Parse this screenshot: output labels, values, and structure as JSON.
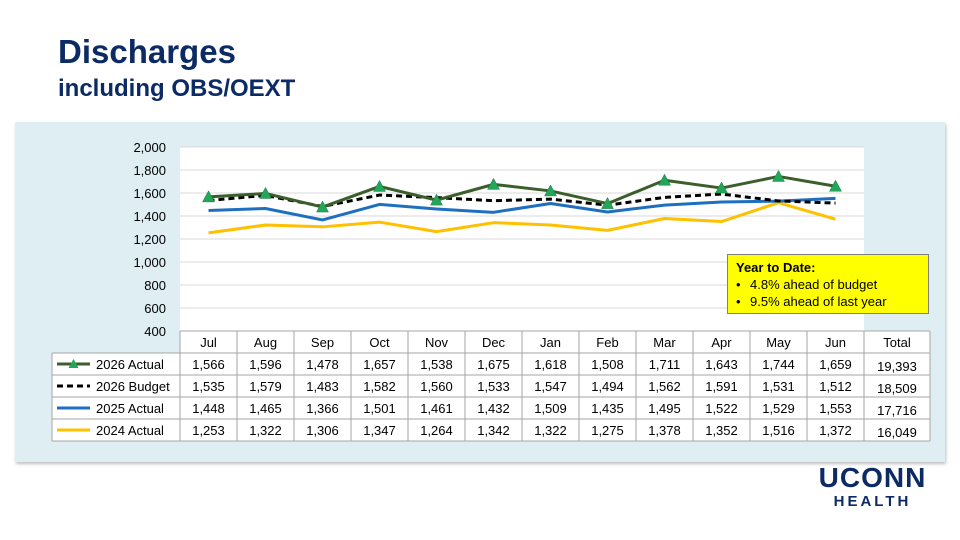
{
  "slide": {
    "title": "Discharges",
    "subtitle": "including OBS/OEXT"
  },
  "callout": {
    "heading": "Year to Date:",
    "bullets": [
      "4.8% ahead of budget",
      "9.5% ahead of last year"
    ]
  },
  "logo": {
    "line1": "UCONN",
    "line2": "HEALTH"
  },
  "chart_data": {
    "type": "line",
    "categories": [
      "Jul",
      "Aug",
      "Sep",
      "Oct",
      "Nov",
      "Dec",
      "Jan",
      "Feb",
      "Mar",
      "Apr",
      "May",
      "Jun"
    ],
    "ylim": [
      400,
      2000
    ],
    "yticks": [
      "400",
      "600",
      "800",
      "1,000",
      "1,200",
      "1,400",
      "1,600",
      "1,800",
      "2,000"
    ],
    "grid": true,
    "total_header": "Total",
    "series": [
      {
        "name": "2026 Actual",
        "color": "#3a5f2a",
        "marker": "triangle",
        "dash": "solid",
        "values": [
          1566,
          1596,
          1478,
          1657,
          1538,
          1675,
          1618,
          1508,
          1711,
          1643,
          1744,
          1659
        ],
        "labels": [
          "1,566",
          "1,596",
          "1,478",
          "1,657",
          "1,538",
          "1,675",
          "1,618",
          "1,508",
          "1,711",
          "1,643",
          "1,744",
          "1,659"
        ],
        "total": "19,393"
      },
      {
        "name": "2026 Budget",
        "color": "#000000",
        "marker": "none",
        "dash": "dashed",
        "values": [
          1535,
          1579,
          1483,
          1582,
          1560,
          1533,
          1547,
          1494,
          1562,
          1591,
          1531,
          1512
        ],
        "labels": [
          "1,535",
          "1,579",
          "1,483",
          "1,582",
          "1,560",
          "1,533",
          "1,547",
          "1,494",
          "1,562",
          "1,591",
          "1,531",
          "1,512"
        ],
        "total": "18,509"
      },
      {
        "name": "2025 Actual",
        "color": "#1f6fc0",
        "marker": "none",
        "dash": "solid",
        "values": [
          1448,
          1465,
          1366,
          1501,
          1461,
          1432,
          1509,
          1435,
          1495,
          1522,
          1529,
          1553
        ],
        "labels": [
          "1,448",
          "1,465",
          "1,366",
          "1,501",
          "1,461",
          "1,432",
          "1,509",
          "1,435",
          "1,495",
          "1,522",
          "1,529",
          "1,553"
        ],
        "total": "17,716"
      },
      {
        "name": "2024 Actual",
        "color": "#ffc000",
        "marker": "none",
        "dash": "solid",
        "values": [
          1253,
          1322,
          1306,
          1347,
          1264,
          1342,
          1322,
          1275,
          1378,
          1352,
          1516,
          1372
        ],
        "labels": [
          "1,253",
          "1,322",
          "1,306",
          "1,347",
          "1,264",
          "1,342",
          "1,322",
          "1,275",
          "1,378",
          "1,352",
          "1,516",
          "1,372"
        ],
        "total": "16,049"
      }
    ]
  }
}
